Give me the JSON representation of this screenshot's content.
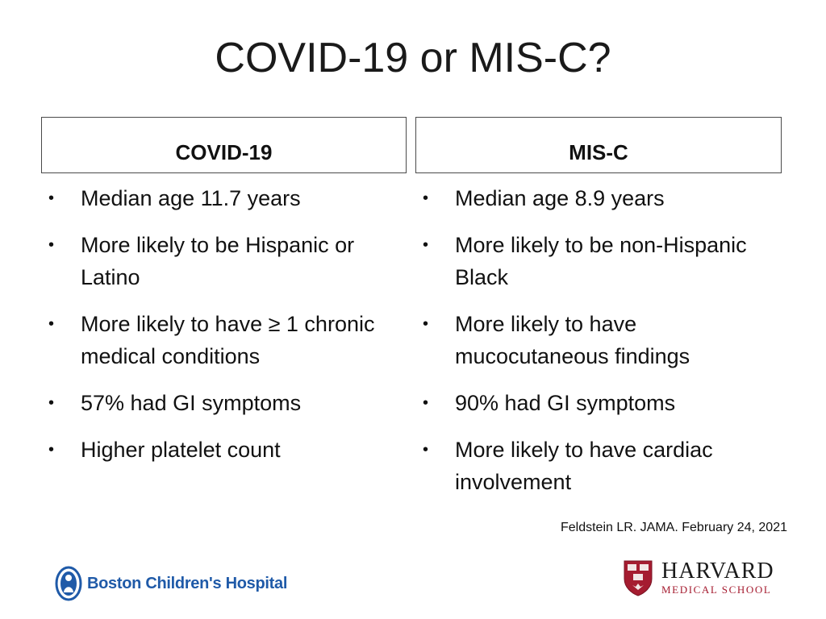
{
  "title": "COVID-19 or MIS-C?",
  "left_column": {
    "header": "COVID-19",
    "bullets": [
      "Median age 11.7 years",
      "More likely to be Hispanic or Latino",
      "More likely to have ≥ 1 chronic medical conditions",
      "57% had GI symptoms",
      "Higher platelet count"
    ]
  },
  "right_column": {
    "header": "MIS-C",
    "bullets": [
      "Median age 8.9 years",
      "More likely to be non-Hispanic Black",
      "More likely to have mucocutaneous findings",
      "90% had GI symptoms",
      "More likely to have cardiac involvement"
    ]
  },
  "citation": "Feldstein LR. JAMA. February 24, 2021",
  "logos": {
    "boston_childrens": {
      "text": "Boston Children's Hospital",
      "color": "#1f5aa8"
    },
    "harvard": {
      "name": "HARVARD",
      "subtitle": "MEDICAL SCHOOL",
      "accent": "#a51c30"
    }
  },
  "colors": {
    "text": "#111111",
    "border": "#4a4a4a",
    "background": "#ffffff"
  }
}
